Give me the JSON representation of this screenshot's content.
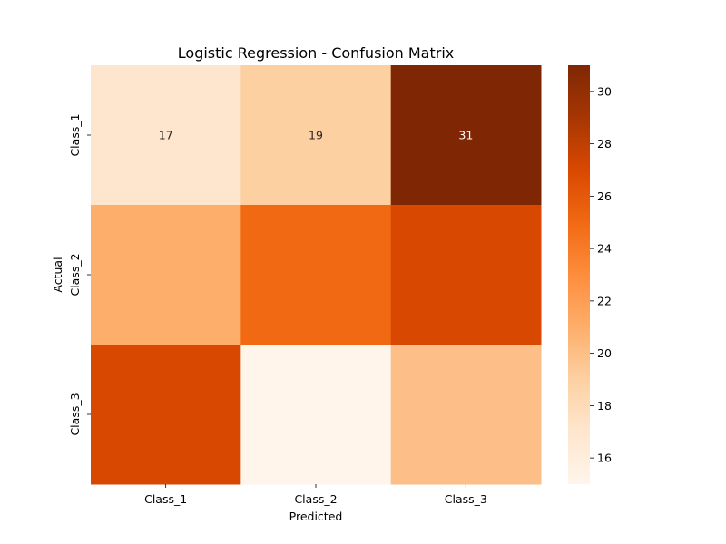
{
  "chart_data": {
    "type": "heatmap",
    "title": "Logistic Regression - Confusion Matrix",
    "xlabel": "Predicted",
    "ylabel": "Actual",
    "x_categories": [
      "Class_1",
      "Class_2",
      "Class_3"
    ],
    "y_categories": [
      "Class_1",
      "Class_2",
      "Class_3"
    ],
    "values": [
      [
        17,
        19,
        31
      ],
      [
        21,
        25,
        27
      ],
      [
        27,
        15,
        20
      ]
    ],
    "annotated_row": 0,
    "colorbar": {
      "min": 15,
      "max": 31,
      "ticks": [
        "16",
        "18",
        "20",
        "22",
        "24",
        "26",
        "28",
        "30"
      ],
      "colormap": "Oranges"
    },
    "colors": {
      "low": "#fff5eb",
      "high": "#7f2704"
    }
  }
}
